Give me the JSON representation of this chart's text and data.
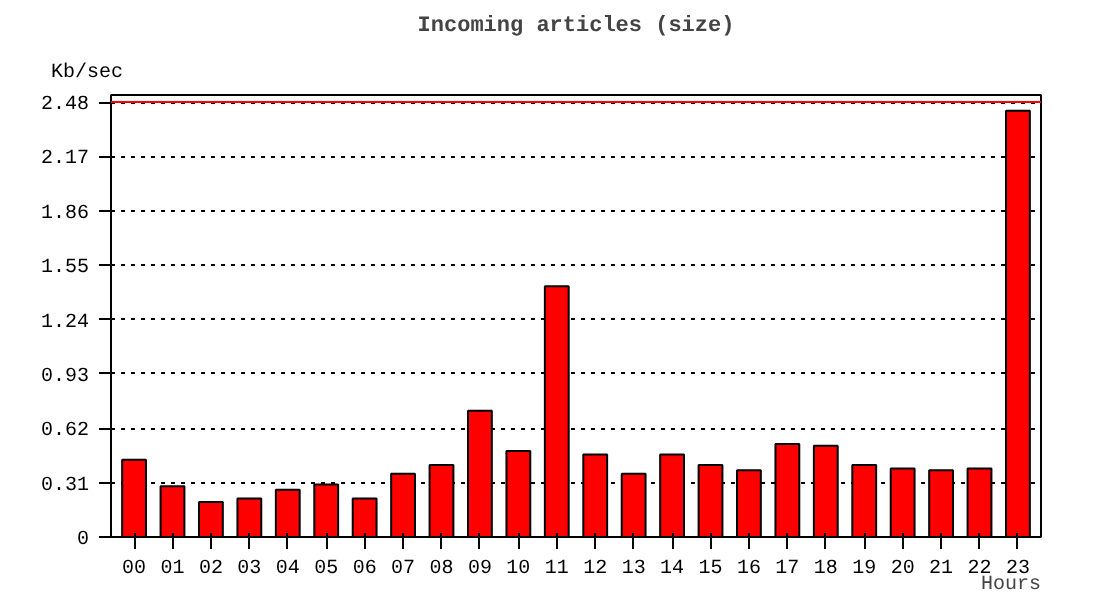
{
  "chart_data": {
    "type": "bar",
    "title": "Incoming articles (size)",
    "ylabel": "Kb/sec",
    "xlabel": "Hours",
    "categories": [
      "00",
      "01",
      "02",
      "03",
      "04",
      "05",
      "06",
      "07",
      "08",
      "09",
      "10",
      "11",
      "12",
      "13",
      "14",
      "15",
      "16",
      "17",
      "18",
      "19",
      "20",
      "21",
      "22",
      "23"
    ],
    "values": [
      0.44,
      0.29,
      0.2,
      0.22,
      0.27,
      0.3,
      0.22,
      0.36,
      0.41,
      0.72,
      0.49,
      1.43,
      0.47,
      0.36,
      0.47,
      0.41,
      0.38,
      0.53,
      0.52,
      0.41,
      0.39,
      0.38,
      0.39,
      2.43
    ],
    "color": "#ff0000",
    "ylim": [
      0,
      2.52
    ],
    "yticks": [
      0,
      0.31,
      0.62,
      0.93,
      1.24,
      1.55,
      1.86,
      2.17,
      2.48
    ],
    "grid": "y",
    "line_style": "dotted",
    "ref_lines": [
      {
        "axis": "y",
        "value": 2.48,
        "color": "#ff0000"
      }
    ]
  }
}
